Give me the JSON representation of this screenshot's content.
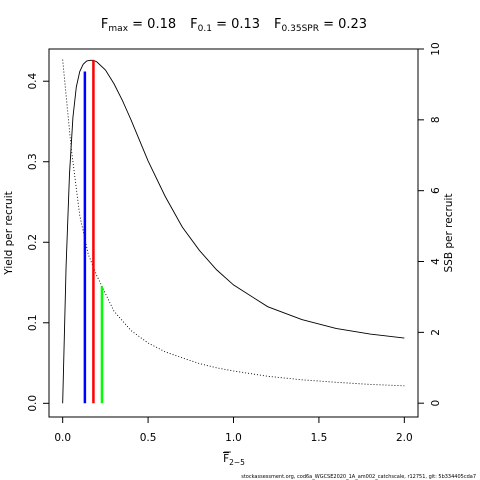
{
  "chart_data": {
    "type": "line",
    "title_parts": [
      {
        "base": "F",
        "sub": "max",
        "eq": " = 0.18"
      },
      {
        "base": "F",
        "sub": "0.1",
        "eq": " = 0.13"
      },
      {
        "base": "F",
        "sub": "0.35SPR",
        "eq": " = 0.23"
      }
    ],
    "xlabel": {
      "base": "F",
      "sub": "2−5"
    },
    "ylabel_left": "Yield per recruit",
    "ylabel_right": "SSB per recruit",
    "xlim": [
      -0.08,
      2.08
    ],
    "ylim_left": [
      -0.017,
      0.44
    ],
    "ylim_right": [
      -0.39,
      10.0
    ],
    "x_ticks": [
      0,
      0.5,
      1.0,
      1.5,
      2.0
    ],
    "x_tick_labels": [
      "0.0",
      "0.5",
      "1.0",
      "1.5",
      "2.0"
    ],
    "y_left_ticks": [
      0,
      0.1,
      0.2,
      0.3,
      0.4
    ],
    "y_left_tick_labels": [
      "0.0",
      "0.1",
      "0.2",
      "0.3",
      "0.4"
    ],
    "y_right_ticks": [
      0,
      2,
      4,
      6,
      8,
      10
    ],
    "y_right_tick_labels": [
      "0",
      "2",
      "4",
      "6",
      "8",
      "10"
    ],
    "series": [
      {
        "axis": "left",
        "style": "solid",
        "color": "#000000",
        "x": [
          0,
          0.02,
          0.04,
          0.06,
          0.08,
          0.1,
          0.12,
          0.14,
          0.16,
          0.18,
          0.2,
          0.25,
          0.3,
          0.35,
          0.4,
          0.5,
          0.6,
          0.7,
          0.8,
          0.9,
          1.0,
          1.2,
          1.4,
          1.6,
          1.8,
          2.0
        ],
        "values": [
          0,
          0.17,
          0.285,
          0.355,
          0.393,
          0.412,
          0.421,
          0.425,
          0.426,
          0.426,
          0.424,
          0.414,
          0.397,
          0.376,
          0.352,
          0.301,
          0.257,
          0.219,
          0.19,
          0.166,
          0.147,
          0.12,
          0.104,
          0.093,
          0.086,
          0.081
        ]
      },
      {
        "axis": "right",
        "style": "dotted",
        "color": "#000000",
        "x": [
          0,
          0.05,
          0.1,
          0.15,
          0.2,
          0.25,
          0.3,
          0.4,
          0.5,
          0.6,
          0.7,
          0.8,
          0.9,
          1.0,
          1.2,
          1.4,
          1.6,
          1.8,
          2.0
        ],
        "values": [
          9.7,
          7.2,
          5.3,
          4.2,
          3.6,
          3.1,
          2.6,
          2.05,
          1.7,
          1.45,
          1.28,
          1.12,
          1.0,
          0.91,
          0.76,
          0.66,
          0.59,
          0.53,
          0.49
        ]
      }
    ],
    "reference_lines": [
      {
        "name": "F0.1",
        "x": 0.13,
        "y": 0.412,
        "color": "#0000ff"
      },
      {
        "name": "Fmax",
        "x": 0.18,
        "y": 0.426,
        "color": "#ff0000"
      },
      {
        "name": "F0.35SPR",
        "x": 0.23,
        "y": 0.145,
        "color": "#00ff00"
      }
    ],
    "legend": "none",
    "grid": false
  },
  "footer": "stockassessment.org, cod6a_WGCSE2020_1A_am002_catchscale, r12751, git: 5b334405cda7"
}
